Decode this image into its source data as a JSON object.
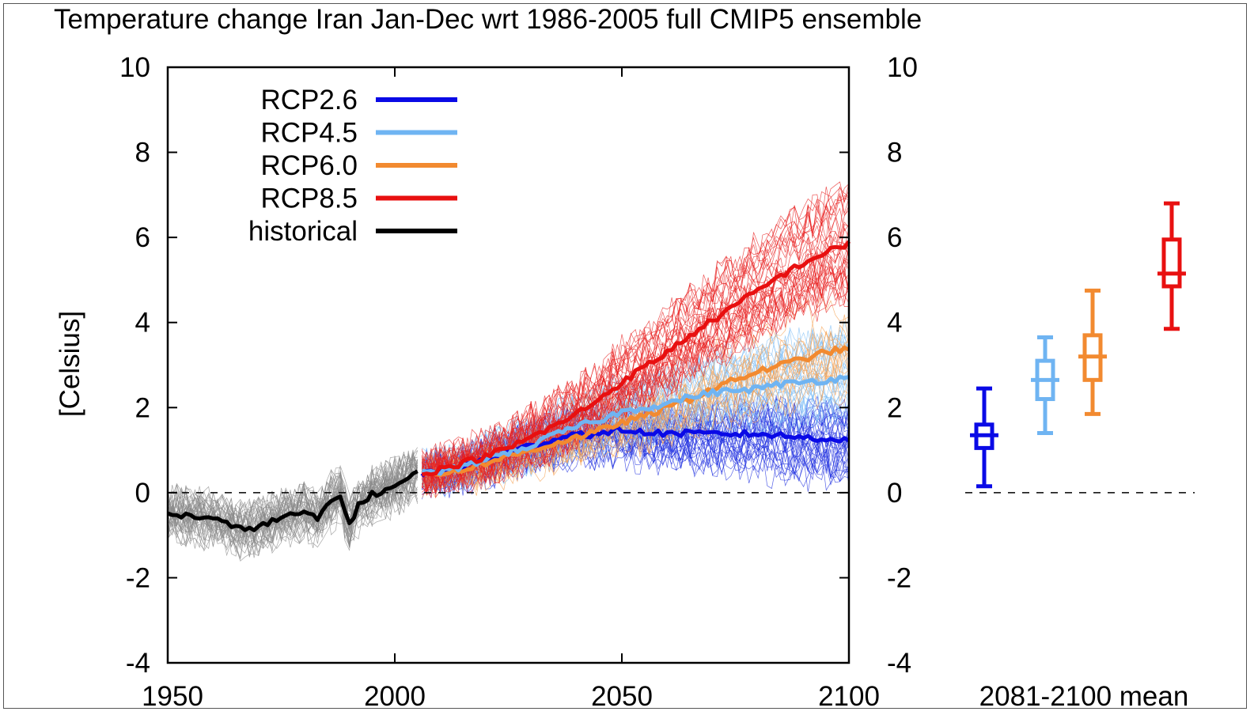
{
  "chart_data": {
    "type": "line",
    "title": "Temperature change Iran Jan-Dec wrt 1986-2005 full CMIP5 ensemble",
    "ylabel": "[Celsius]",
    "xlabel": "",
    "xlim": [
      1950,
      2100
    ],
    "ylim": [
      -4,
      10
    ],
    "x_ticks": [
      "1950",
      "2000",
      "2050",
      "2100"
    ],
    "y_ticks": [
      "-4",
      "-2",
      "0",
      "2",
      "4",
      "6",
      "8",
      "10"
    ],
    "zero_line": true,
    "legend": {
      "placement": "top-left",
      "entries": [
        {
          "label": "RCP2.6",
          "color": "#0a0ae6"
        },
        {
          "label": "RCP4.5",
          "color": "#6fb4f2"
        },
        {
          "label": "RCP6.0",
          "color": "#f28a30"
        },
        {
          "label": "RCP8.5",
          "color": "#e81010"
        },
        {
          "label": "historical",
          "color": "#000000"
        }
      ]
    },
    "ensemble_member_colors": {
      "historical": "#8a8a8a",
      "RCP2.6": "#2030e0",
      "RCP4.5": "#80bff5",
      "RCP6.0": "#f5a050",
      "RCP8.5": "#e82020"
    },
    "series": [
      {
        "name": "historical",
        "color": "#000000",
        "x": [
          1950,
          1955,
          1960,
          1965,
          1970,
          1975,
          1980,
          1983,
          1985,
          1988,
          1990,
          1992,
          1995,
          2000,
          2005
        ],
        "y": [
          -0.5,
          -0.55,
          -0.6,
          -0.85,
          -0.8,
          -0.6,
          -0.45,
          -0.65,
          -0.3,
          -0.05,
          -0.75,
          -0.3,
          -0.05,
          0.15,
          0.45
        ]
      },
      {
        "name": "RCP2.6",
        "color": "#0a0ae6",
        "x": [
          2006,
          2010,
          2015,
          2020,
          2025,
          2030,
          2035,
          2040,
          2045,
          2050,
          2055,
          2060,
          2070,
          2080,
          2090,
          2100
        ],
        "y": [
          0.45,
          0.5,
          0.6,
          0.8,
          0.95,
          1.1,
          1.25,
          1.4,
          1.35,
          1.5,
          1.4,
          1.4,
          1.38,
          1.38,
          1.3,
          1.25
        ]
      },
      {
        "name": "RCP4.5",
        "color": "#6fb4f2",
        "x": [
          2006,
          2010,
          2015,
          2020,
          2025,
          2030,
          2035,
          2040,
          2045,
          2050,
          2055,
          2060,
          2065,
          2070,
          2075,
          2080,
          2085,
          2090,
          2095,
          2100
        ],
        "y": [
          0.45,
          0.5,
          0.6,
          0.8,
          0.95,
          1.1,
          1.35,
          1.55,
          1.7,
          1.9,
          2.0,
          2.1,
          2.25,
          2.35,
          2.4,
          2.45,
          2.55,
          2.6,
          2.65,
          2.7
        ]
      },
      {
        "name": "RCP6.0",
        "color": "#f28a30",
        "x": [
          2006,
          2010,
          2015,
          2020,
          2025,
          2030,
          2035,
          2040,
          2045,
          2050,
          2055,
          2060,
          2065,
          2070,
          2075,
          2080,
          2085,
          2090,
          2095,
          2100
        ],
        "y": [
          0.45,
          0.45,
          0.55,
          0.7,
          0.85,
          1.0,
          1.15,
          1.3,
          1.45,
          1.65,
          1.8,
          2.0,
          2.2,
          2.45,
          2.65,
          2.85,
          3.0,
          3.15,
          3.3,
          3.4
        ]
      },
      {
        "name": "RCP8.5",
        "color": "#e81010",
        "x": [
          2006,
          2010,
          2015,
          2020,
          2025,
          2030,
          2035,
          2040,
          2045,
          2050,
          2055,
          2060,
          2065,
          2070,
          2075,
          2080,
          2085,
          2090,
          2095,
          2100
        ],
        "y": [
          0.45,
          0.55,
          0.7,
          0.85,
          1.05,
          1.3,
          1.55,
          1.85,
          2.2,
          2.6,
          2.95,
          3.3,
          3.7,
          4.05,
          4.4,
          4.75,
          5.1,
          5.4,
          5.65,
          5.85
        ]
      }
    ],
    "boxplots": {
      "label": "2081-2100 mean",
      "boxes": [
        {
          "name": "RCP2.6",
          "color": "#0a0ae6",
          "min": 0.15,
          "q1": 1.05,
          "median": 1.35,
          "q3": 1.6,
          "max": 2.45
        },
        {
          "name": "RCP4.5",
          "color": "#6fb4f2",
          "min": 1.4,
          "q1": 2.2,
          "median": 2.65,
          "q3": 3.1,
          "max": 3.65
        },
        {
          "name": "RCP6.0",
          "color": "#f28a30",
          "min": 1.85,
          "q1": 2.65,
          "median": 3.2,
          "q3": 3.7,
          "max": 4.75
        },
        {
          "name": "RCP8.5",
          "color": "#e81010",
          "min": 3.85,
          "q1": 4.85,
          "median": 5.15,
          "q3": 5.95,
          "max": 6.8
        }
      ]
    }
  }
}
